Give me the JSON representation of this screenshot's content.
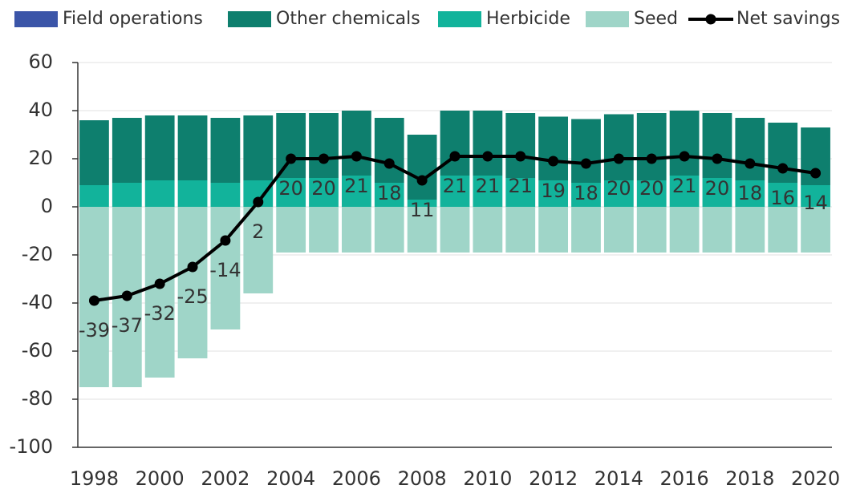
{
  "chart_data": {
    "type": "bar",
    "stacked": true,
    "categories": [
      "1998",
      null,
      "2000",
      null,
      "2002",
      null,
      "2004",
      null,
      "2006",
      null,
      "2008",
      null,
      "2010",
      null,
      "2012",
      null,
      "2014",
      null,
      "2016",
      null,
      "2018",
      null,
      "2020"
    ],
    "series": [
      {
        "name": "Field operations",
        "type": "bar",
        "color": "#3b55a8",
        "values": [
          0,
          0,
          0,
          0,
          0,
          0,
          0,
          0,
          0,
          0,
          0,
          0,
          0,
          0,
          0,
          0,
          0,
          0,
          0,
          0,
          0,
          0,
          0
        ]
      },
      {
        "name": "Other chemicals",
        "type": "bar",
        "color": "#0e7f6e",
        "values": [
          27,
          27,
          27,
          27,
          27,
          27,
          27,
          27,
          27,
          27,
          27,
          27,
          27,
          27,
          26.5,
          26.5,
          27.5,
          28,
          27,
          27,
          26,
          25,
          24
        ]
      },
      {
        "name": "Herbicide",
        "type": "bar",
        "color": "#12b39b",
        "values": [
          9,
          10,
          11,
          11,
          10,
          11,
          12,
          12,
          13,
          10,
          3,
          13,
          13,
          12,
          11,
          10,
          11,
          11,
          13,
          12,
          11,
          10,
          9
        ]
      },
      {
        "name": "Seed",
        "type": "bar",
        "color": "#9fd5c8",
        "values": [
          -75,
          -75,
          -71,
          -63,
          -51,
          -36,
          -19,
          -19,
          -19,
          -19,
          -19,
          -19,
          -19,
          -19,
          -19,
          -19,
          -19,
          -19,
          -19,
          -19,
          -19,
          -19,
          -19
        ]
      },
      {
        "name": "Net savings",
        "type": "line",
        "color": "#000000",
        "values": [
          -39,
          -37,
          -32,
          -25,
          -14,
          2,
          20,
          20,
          21,
          18,
          11,
          21,
          21,
          21,
          19,
          18,
          20,
          20,
          21,
          20,
          18,
          16,
          14
        ]
      }
    ],
    "ylim": [
      -100,
      60
    ],
    "yticks": [
      -100,
      -80,
      -60,
      -40,
      -20,
      0,
      20,
      40,
      60
    ],
    "grid": true,
    "legend": "top"
  }
}
